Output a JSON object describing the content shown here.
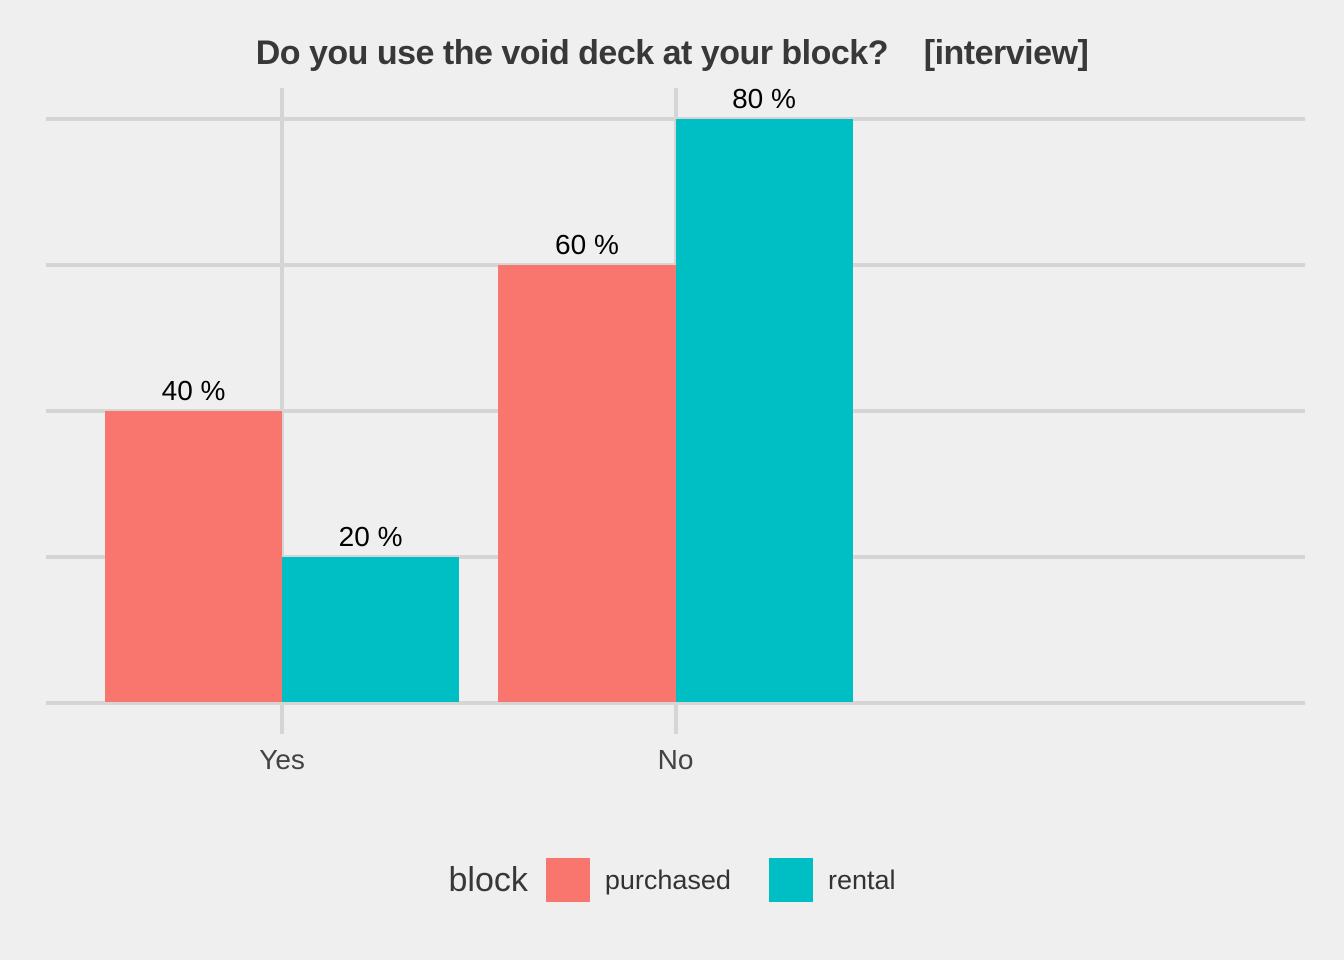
{
  "chart_data": {
    "type": "bar",
    "title": "Do you use the void deck at your block?    [interview]",
    "categories": [
      "Yes",
      "No"
    ],
    "series": [
      {
        "name": "purchased",
        "color": "#F8766D",
        "values": [
          40,
          60
        ],
        "labels": [
          "40 %",
          "60 %"
        ]
      },
      {
        "name": "rental",
        "color": "#00BFC4",
        "values": [
          20,
          80
        ],
        "labels": [
          "20 %",
          "80 %"
        ]
      }
    ],
    "unit": "%",
    "ylim": [
      0,
      80
    ],
    "yticks": [
      0,
      20,
      40,
      60,
      80
    ],
    "grid": true,
    "bar_layout": "dodge",
    "legend_position": "bottom",
    "legend_title": "block",
    "xlabel": "",
    "ylabel": ""
  },
  "theme": {
    "background": "#EFEFEF",
    "gridline_color": "#D5D5D5",
    "title_color": "#383838",
    "axis_text_color": "#434343",
    "value_label_color": "#000000"
  }
}
